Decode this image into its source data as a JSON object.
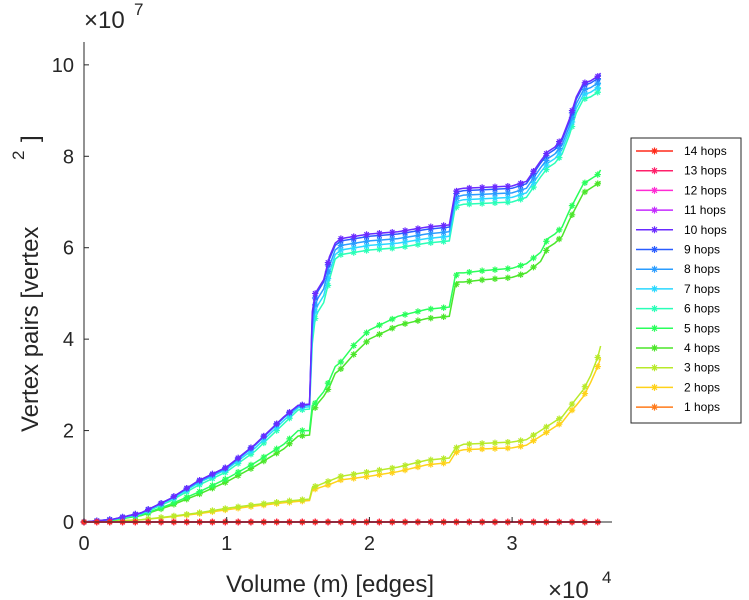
{
  "chart_data": {
    "type": "line",
    "xlabel": "Volume (m) [edges]",
    "ylabel": "Vertex pairs [vertex",
    "ylabel_sup": "2",
    "ylabel_close": "]",
    "x_multiplier": "×10",
    "x_multiplier_exp": "4",
    "y_multiplier": "×10",
    "y_multiplier_exp": "7",
    "xlim": [
      0,
      3.7
    ],
    "ylim": [
      0,
      10.5
    ],
    "xticks": [
      0,
      1,
      2,
      3
    ],
    "xtick_labels": [
      "0",
      "1",
      "2",
      "3"
    ],
    "yticks": [
      0,
      2,
      4,
      6,
      8,
      10
    ],
    "ytick_labels": [
      "0",
      "2",
      "4",
      "6",
      "8",
      "10"
    ],
    "legend_location": "east-outside",
    "x": [
      0,
      0.2,
      0.4,
      0.6,
      0.8,
      1.0,
      1.2,
      1.4,
      1.5,
      1.58,
      1.6,
      1.62,
      1.64,
      1.68,
      1.72,
      1.76,
      1.8,
      1.9,
      2.0,
      2.2,
      2.4,
      2.56,
      2.6,
      2.62,
      2.66,
      2.8,
      3.0,
      3.1,
      3.2,
      3.25,
      3.3,
      3.35,
      3.4,
      3.45,
      3.5,
      3.55,
      3.6,
      3.62
    ],
    "series": [
      {
        "name": "14 hops",
        "color": "#ff2a1a",
        "values": [
          0,
          0,
          0,
          0,
          0,
          0,
          0,
          0,
          0,
          0,
          0,
          0,
          0,
          0,
          0,
          0,
          0,
          0,
          0,
          0,
          0,
          0,
          0,
          0,
          0,
          0,
          0,
          0,
          0,
          0,
          0,
          0,
          0,
          0,
          0,
          0,
          0,
          0
        ]
      },
      {
        "name": "13 hops",
        "color": "#ff1f6a",
        "values": [
          0,
          0,
          0,
          0,
          0,
          0,
          0,
          0,
          0,
          0,
          0,
          0,
          0,
          0,
          0,
          0,
          0,
          0,
          0,
          0,
          0,
          0,
          0,
          0,
          0,
          0,
          0,
          0,
          0,
          0,
          0,
          0,
          0,
          0,
          0,
          0,
          0,
          0
        ]
      },
      {
        "name": "12 hops",
        "color": "#ff2ad4",
        "values": [
          0,
          0,
          0,
          0,
          0,
          0,
          0,
          0,
          0,
          0,
          0,
          0,
          0,
          0,
          0,
          0,
          0,
          0,
          0,
          0,
          0,
          0,
          0,
          0,
          0,
          0,
          0,
          0,
          0,
          0,
          0,
          0,
          0,
          0,
          0,
          0,
          0,
          0
        ]
      },
      {
        "name": "11 hops",
        "color": "#c42aff",
        "values": [
          0,
          0,
          0,
          0,
          0,
          0,
          0,
          0,
          0,
          0,
          0,
          0,
          0,
          0,
          0,
          0,
          0,
          0,
          0,
          0,
          0,
          0,
          0,
          0,
          0,
          0,
          0,
          0,
          0,
          0,
          0,
          0,
          0,
          0,
          0,
          0,
          0,
          0
        ]
      },
      {
        "name": "10 hops",
        "color": "#6a2aff",
        "values": [
          0,
          0.06,
          0.2,
          0.5,
          0.9,
          1.2,
          1.7,
          2.3,
          2.55,
          2.58,
          4.6,
          5.0,
          5.1,
          5.3,
          5.8,
          6.1,
          6.2,
          6.25,
          6.3,
          6.35,
          6.45,
          6.5,
          7.2,
          7.28,
          7.3,
          7.32,
          7.35,
          7.45,
          7.9,
          8.1,
          8.2,
          8.4,
          8.8,
          9.3,
          9.6,
          9.65,
          9.75,
          9.82
        ]
      },
      {
        "name": "9 hops",
        "color": "#2a5cff",
        "values": [
          0,
          0.06,
          0.2,
          0.5,
          0.9,
          1.2,
          1.7,
          2.3,
          2.55,
          2.58,
          4.5,
          4.9,
          5.05,
          5.25,
          5.75,
          6.05,
          6.15,
          6.2,
          6.25,
          6.3,
          6.4,
          6.45,
          7.15,
          7.22,
          7.25,
          7.27,
          7.3,
          7.4,
          7.85,
          8.05,
          8.15,
          8.35,
          8.75,
          9.25,
          9.55,
          9.6,
          9.7,
          9.78
        ]
      },
      {
        "name": "8 hops",
        "color": "#2a9cff",
        "values": [
          0,
          0.06,
          0.2,
          0.5,
          0.88,
          1.18,
          1.68,
          2.28,
          2.53,
          2.56,
          4.3,
          4.75,
          4.9,
          5.1,
          5.6,
          5.95,
          6.05,
          6.1,
          6.15,
          6.2,
          6.3,
          6.35,
          7.05,
          7.12,
          7.15,
          7.17,
          7.2,
          7.3,
          7.75,
          7.95,
          8.05,
          8.25,
          8.65,
          9.15,
          9.45,
          9.5,
          9.6,
          9.7
        ]
      },
      {
        "name": "7 hops",
        "color": "#2ad8ff",
        "values": [
          0,
          0.05,
          0.18,
          0.48,
          0.85,
          1.15,
          1.62,
          2.22,
          2.5,
          2.52,
          4.1,
          4.6,
          4.75,
          4.95,
          5.45,
          5.85,
          5.95,
          6.0,
          6.05,
          6.1,
          6.2,
          6.25,
          6.95,
          7.02,
          7.05,
          7.07,
          7.1,
          7.2,
          7.65,
          7.85,
          7.95,
          8.15,
          8.55,
          9.05,
          9.35,
          9.4,
          9.5,
          9.6
        ]
      },
      {
        "name": "6 hops",
        "color": "#2affb8",
        "values": [
          0,
          0.05,
          0.17,
          0.45,
          0.8,
          1.1,
          1.55,
          2.15,
          2.45,
          2.47,
          3.9,
          4.45,
          4.6,
          4.8,
          5.3,
          5.75,
          5.85,
          5.9,
          5.95,
          6.0,
          6.1,
          6.15,
          6.85,
          6.92,
          6.95,
          6.97,
          7.0,
          7.1,
          7.55,
          7.75,
          7.85,
          8.05,
          8.45,
          8.95,
          9.25,
          9.3,
          9.4,
          9.5
        ]
      },
      {
        "name": "5 hops",
        "color": "#2aff5c",
        "values": [
          0,
          0.04,
          0.15,
          0.38,
          0.65,
          0.95,
          1.3,
          1.7,
          2.0,
          2.0,
          2.55,
          2.6,
          2.7,
          2.85,
          3.1,
          3.4,
          3.5,
          3.9,
          4.2,
          4.5,
          4.65,
          4.7,
          5.35,
          5.45,
          5.45,
          5.5,
          5.55,
          5.65,
          5.9,
          6.2,
          6.3,
          6.45,
          6.8,
          7.1,
          7.4,
          7.5,
          7.6,
          7.7
        ]
      },
      {
        "name": "4 hops",
        "color": "#4ce62a",
        "values": [
          0,
          0.04,
          0.14,
          0.35,
          0.6,
          0.88,
          1.22,
          1.6,
          1.88,
          1.9,
          2.45,
          2.5,
          2.6,
          2.75,
          2.95,
          3.25,
          3.35,
          3.7,
          4.0,
          4.3,
          4.45,
          4.5,
          5.15,
          5.25,
          5.25,
          5.3,
          5.35,
          5.45,
          5.7,
          6.0,
          6.1,
          6.25,
          6.6,
          6.9,
          7.2,
          7.3,
          7.4,
          7.45
        ]
      },
      {
        "name": "3 hops",
        "color": "#b8ea2a",
        "values": [
          0,
          0.02,
          0.05,
          0.12,
          0.2,
          0.3,
          0.38,
          0.45,
          0.48,
          0.5,
          0.75,
          0.78,
          0.8,
          0.85,
          0.9,
          0.95,
          1.0,
          1.05,
          1.1,
          1.2,
          1.35,
          1.4,
          1.6,
          1.65,
          1.7,
          1.72,
          1.75,
          1.8,
          2.0,
          2.1,
          2.2,
          2.3,
          2.5,
          2.7,
          2.9,
          3.2,
          3.6,
          3.85
        ]
      },
      {
        "name": "2 hops",
        "color": "#ffd21a",
        "values": [
          0,
          0.02,
          0.05,
          0.11,
          0.18,
          0.27,
          0.35,
          0.42,
          0.45,
          0.47,
          0.7,
          0.72,
          0.74,
          0.78,
          0.82,
          0.87,
          0.92,
          0.96,
          1.0,
          1.1,
          1.25,
          1.3,
          1.5,
          1.55,
          1.58,
          1.6,
          1.62,
          1.68,
          1.88,
          1.98,
          2.08,
          2.18,
          2.38,
          2.55,
          2.75,
          3.05,
          3.4,
          3.58
        ]
      },
      {
        "name": "1 hops",
        "color": "#ff7a1a",
        "values": [
          0,
          0,
          0,
          0,
          0,
          0,
          0,
          0,
          0,
          0,
          0,
          0,
          0,
          0,
          0,
          0,
          0,
          0,
          0,
          0,
          0,
          0,
          0,
          0,
          0,
          0,
          0,
          0,
          0,
          0,
          0,
          0,
          0,
          0,
          0,
          0,
          0,
          0
        ]
      }
    ]
  }
}
